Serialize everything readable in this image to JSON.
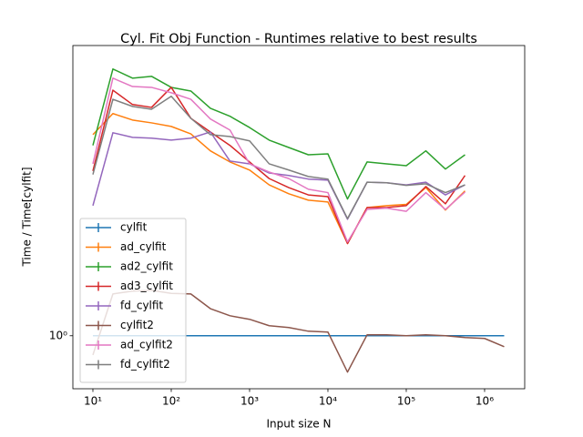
{
  "chart_data": {
    "type": "line",
    "title": "Cyl. Fit Obj Function - Runtimes relative to best results",
    "x_label": "Input size N",
    "y_label": "Time / Time[cylfit]",
    "x": [
      10,
      18,
      32,
      56,
      100,
      178,
      316,
      562,
      1000,
      1778,
      3162,
      5623,
      10000,
      17783,
      31623,
      56234,
      100000,
      177828,
      316228,
      562341,
      1000000,
      1778279
    ],
    "xlim": [
      5.55,
      3250000
    ],
    "ylim": [
      0.7,
      7.05
    ],
    "xscale": "log",
    "yscale": "log",
    "xticks": [
      {
        "value": 10,
        "label": "10¹"
      },
      {
        "value": 100,
        "label": "10²"
      },
      {
        "value": 1000,
        "label": "10³"
      },
      {
        "value": 10000,
        "label": "10⁴"
      },
      {
        "value": 100000,
        "label": "10⁵"
      },
      {
        "value": 1000000,
        "label": "10⁶"
      }
    ],
    "yticks": [
      {
        "value": 1,
        "label": "10⁰"
      }
    ],
    "legend": "lower left",
    "series": [
      {
        "name": "cylfit",
        "color": "#1f77b4",
        "values": [
          1,
          1,
          1,
          1,
          1,
          1,
          1,
          1,
          1,
          1,
          1,
          1,
          1,
          1,
          1,
          1,
          1,
          1,
          1,
          1,
          1,
          1
        ]
      },
      {
        "name": "ad_cylfit",
        "color": "#ff7f0e",
        "values": [
          3.87,
          4.46,
          4.27,
          4.19,
          4.09,
          3.89,
          3.47,
          3.22,
          3.05,
          2.76,
          2.6,
          2.49,
          2.46,
          1.86,
          2.37,
          2.4,
          2.42,
          2.71,
          2.33,
          2.65,
          null,
          null
        ]
      },
      {
        "name": "ad2_cylfit",
        "color": "#2ca02c",
        "values": [
          3.6,
          6.02,
          5.66,
          5.73,
          5.32,
          5.19,
          4.62,
          4.38,
          4.06,
          3.73,
          3.55,
          3.38,
          3.4,
          2.51,
          3.22,
          3.18,
          3.14,
          3.47,
          3.07,
          3.38,
          null,
          null
        ]
      },
      {
        "name": "ad3_cylfit",
        "color": "#d62728",
        "values": [
          3.03,
          5.22,
          4.74,
          4.65,
          5.32,
          4.32,
          3.94,
          3.6,
          3.22,
          2.88,
          2.71,
          2.58,
          2.55,
          1.86,
          2.37,
          2.37,
          2.4,
          2.73,
          2.43,
          2.94,
          null,
          null
        ]
      },
      {
        "name": "fd_cylfit",
        "color": "#9467bd",
        "values": [
          2.4,
          3.92,
          3.8,
          3.78,
          3.73,
          3.78,
          3.94,
          3.24,
          3.18,
          2.99,
          2.94,
          2.87,
          2.85,
          2.19,
          2.81,
          2.8,
          2.76,
          2.81,
          2.58,
          2.76,
          null,
          null
        ]
      },
      {
        "name": "cylfit2",
        "color": "#8c564b",
        "values": [
          0.879,
          1.325,
          1.35,
          1.358,
          1.33,
          1.325,
          1.2,
          1.144,
          1.117,
          1.07,
          1.057,
          1.031,
          1.025,
          0.783,
          1.006,
          1.006,
          1,
          1.006,
          1,
          0.988,
          0.982,
          0.929
        ]
      },
      {
        "name": "ad_cylfit2",
        "color": "#e377c2",
        "values": [
          3.18,
          5.66,
          5.35,
          5.32,
          5.13,
          4.91,
          4.3,
          3.99,
          3.18,
          3.01,
          2.88,
          2.68,
          2.62,
          1.88,
          2.34,
          2.36,
          2.31,
          2.62,
          2.34,
          2.63,
          null,
          null
        ]
      },
      {
        "name": "fd_cylfit2",
        "color": "#7f7f7f",
        "values": [
          2.96,
          4.91,
          4.68,
          4.59,
          5.01,
          4.32,
          3.87,
          3.82,
          3.71,
          3.18,
          3.05,
          2.92,
          2.87,
          2.2,
          2.81,
          2.8,
          2.75,
          2.78,
          2.62,
          2.76,
          null,
          null
        ]
      }
    ]
  }
}
